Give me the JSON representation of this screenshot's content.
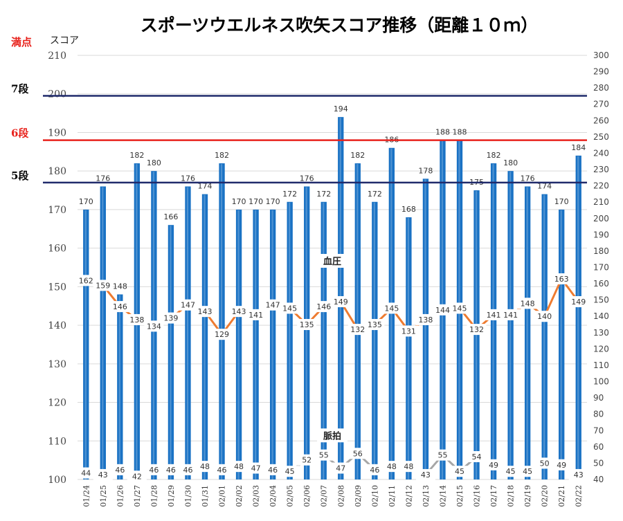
{
  "chart_data": {
    "type": "bar+line",
    "title": "スポーツウエルネス吹矢スコア推移（距離１０ｍ）",
    "y_axis_label": "スコア",
    "top_left_label": "満点",
    "categories": [
      "01/24",
      "01/25",
      "01/26",
      "01/27",
      "01/28",
      "01/29",
      "01/30",
      "01/31",
      "02/01",
      "02/02",
      "02/03",
      "02/04",
      "02/05",
      "02/06",
      "02/07",
      "02/08",
      "02/09",
      "02/10",
      "02/11",
      "02/12",
      "02/13",
      "02/14",
      "02/15",
      "02/16",
      "02/17",
      "02/18",
      "02/19",
      "02/20",
      "02/21",
      "02/22"
    ],
    "bars": {
      "color": "#1a72c4",
      "values": [
        170,
        176,
        148,
        182,
        180,
        166,
        176,
        174,
        182,
        170,
        170,
        170,
        172,
        176,
        172,
        194,
        182,
        172,
        186,
        168,
        178,
        188,
        188,
        175,
        182,
        180,
        176,
        174,
        170,
        184
      ]
    },
    "lines": [
      {
        "name": "血圧",
        "color": "#ee7b30",
        "values": [
          162,
          159,
          146,
          138,
          134,
          139,
          147,
          143,
          129,
          143,
          141,
          147,
          145,
          135,
          146,
          149,
          132,
          135,
          145,
          131,
          138,
          144,
          145,
          132,
          141,
          141,
          148,
          140,
          163,
          149
        ]
      },
      {
        "name": "脈拍",
        "color": "#a6a6a6",
        "values": [
          44,
          43,
          46,
          42,
          46,
          46,
          46,
          48,
          46,
          48,
          47,
          46,
          45,
          52,
          55,
          47,
          56,
          46,
          48,
          48,
          43,
          55,
          45,
          54,
          49,
          45,
          45,
          50,
          49,
          43
        ]
      }
    ],
    "ylim": [
      100,
      210
    ],
    "yticks": [
      "100",
      "110",
      "120",
      "130",
      "140",
      "150",
      "160",
      "170",
      "180",
      "190",
      "200",
      "210"
    ],
    "y2lim": [
      40,
      300
    ],
    "y2ticks": [
      "40",
      "50",
      "60",
      "70",
      "80",
      "90",
      "100",
      "110",
      "120",
      "130",
      "140",
      "150",
      "160",
      "170",
      "180",
      "190",
      "200",
      "210",
      "220",
      "230",
      "240",
      "250",
      "260",
      "270",
      "280",
      "290",
      "300"
    ],
    "reference_lines": [
      {
        "label": "7段",
        "value": 199.5,
        "color": "#1f2a6b",
        "label_color": "#000000"
      },
      {
        "label": "6段",
        "value": 188,
        "color": "#e8221c",
        "label_color": "#e8221c"
      },
      {
        "label": "5段",
        "value": 177,
        "color": "#1f2a6b",
        "label_color": "#000000"
      }
    ],
    "grid": true,
    "legend": "none"
  }
}
